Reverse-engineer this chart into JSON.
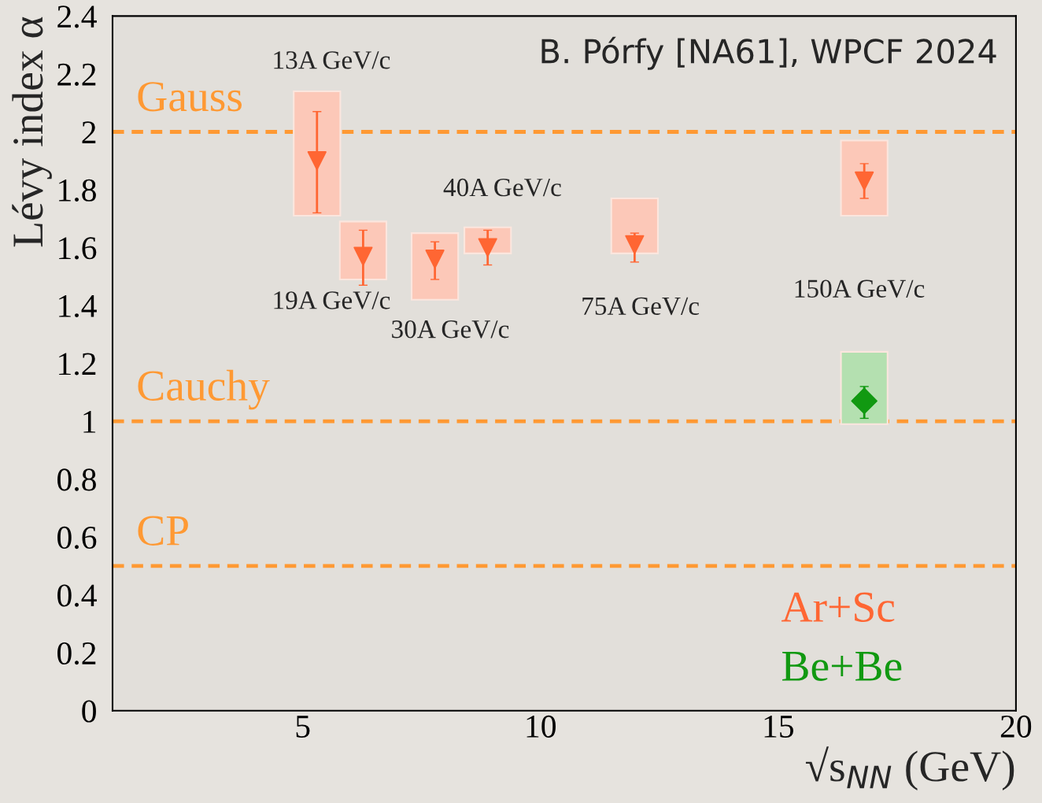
{
  "chart_data": {
    "type": "scatter",
    "title": "B. Pórfy [NA61], WPCF 2024",
    "xlabel": "√s$_{NN}$ (GeV)",
    "ylabel": "Lévy index α",
    "xlim": [
      1,
      20
    ],
    "xticks": [
      5,
      10,
      15,
      20
    ],
    "ylim": [
      0,
      2.4
    ],
    "yticks": [
      0,
      0.2,
      0.4,
      0.6,
      0.8,
      1,
      1.2,
      1.4,
      1.6,
      1.8,
      2,
      2.2,
      2.4
    ],
    "series": [
      {
        "type": "bar",
        "color": "#fcc8b8",
        "x": [
          5.3,
          6.27,
          7.78,
          8.89,
          11.98,
          16.81
        ],
        "base": [
          1.71,
          1.49,
          1.42,
          1.58,
          1.58,
          1.71
        ],
        "values": [
          0.43,
          0.2,
          0.23,
          0.09,
          0.19,
          0.26
        ]
      },
      {
        "type": "bar",
        "color": "#b4e0b0",
        "x": [
          16.81
        ],
        "base": [
          0.99
        ],
        "values": [
          0.25
        ]
      },
      {
        "name": "Ar+Sc",
        "marker": "triangle",
        "color": "#ff6633",
        "x": [
          5.3,
          6.27,
          7.78,
          8.89,
          11.98,
          16.81
        ],
        "values": [
          1.9,
          1.57,
          1.56,
          1.6,
          1.61,
          1.83
        ],
        "errors": [
          [
            1.72,
            2.07
          ],
          [
            1.47,
            1.66
          ],
          [
            1.49,
            1.62
          ],
          [
            1.54,
            1.66
          ],
          [
            1.55,
            1.65
          ],
          [
            1.77,
            1.89
          ]
        ]
      },
      {
        "name": "Be+Be",
        "marker": "diamond",
        "color": "#119911",
        "x": [
          16.81
        ],
        "values": [
          1.07
        ],
        "errors": [
          [
            1.01,
            1.12
          ]
        ]
      }
    ],
    "ref_lines": [
      {
        "axis": "y",
        "value": 2,
        "label": "Gauss",
        "color": "#ff9933",
        "line_style": "dashed"
      },
      {
        "axis": "y",
        "value": 1,
        "label": "Cauchy",
        "color": "#ff9933",
        "line_style": "dashed"
      },
      {
        "axis": "y",
        "value": 0.5,
        "label": "CP",
        "color": "#ff9933",
        "line_style": "dashed"
      }
    ],
    "annotations": [
      "13A GeV/c",
      "19A GeV/c",
      "30A GeV/c",
      "40A GeV/c",
      "75A GeV/c",
      "150A GeV/c"
    ],
    "legend": "bottom right",
    "grid": false
  }
}
